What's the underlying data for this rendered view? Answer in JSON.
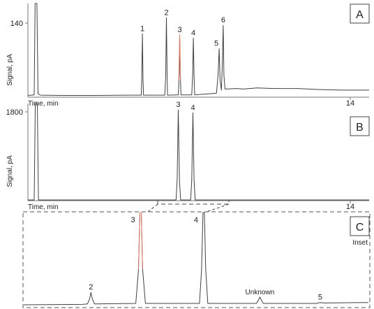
{
  "chart_data": [
    {
      "id": "A",
      "type": "line",
      "panel_label": "A",
      "ylabel": "Signal, pA",
      "xlabel": "Time, min",
      "y_tick": "140",
      "x_tick": "14",
      "ylim": [
        0,
        175
      ],
      "xlim": [
        0,
        15.2
      ],
      "series": [
        {
          "points": [
            [
              0,
              2
            ],
            [
              0.28,
              3
            ],
            [
              0.32,
              175
            ],
            [
              0.36,
              175
            ],
            [
              0.4,
              175
            ],
            [
              0.45,
              5
            ],
            [
              0.55,
              2.5
            ],
            [
              1.5,
              2
            ],
            [
              3,
              2
            ],
            [
              4.5,
              2.5
            ],
            [
              5.0,
              2.5
            ],
            [
              5.05,
              2.5
            ],
            [
              5.07,
              30
            ],
            [
              5.1,
              118
            ],
            [
              5.13,
              30
            ],
            [
              5.15,
              2.5
            ],
            [
              6.1,
              2.5
            ],
            [
              6.14,
              40
            ],
            [
              6.17,
              148
            ],
            [
              6.2,
              40
            ],
            [
              6.22,
              2.5
            ],
            [
              6.7,
              3
            ],
            [
              6.74,
              40
            ],
            [
              6.76,
              116
            ],
            [
              6.79,
              40
            ],
            [
              6.82,
              3
            ],
            [
              7.3,
              3
            ],
            [
              7.34,
              40
            ],
            [
              7.37,
              110
            ],
            [
              7.4,
              40
            ],
            [
              7.43,
              3
            ],
            [
              8.4,
              6
            ],
            [
              8.47,
              40
            ],
            [
              8.52,
              90
            ],
            [
              8.56,
              30
            ],
            [
              8.62,
              12
            ],
            [
              8.66,
              60
            ],
            [
              8.7,
              134
            ],
            [
              8.73,
              40
            ],
            [
              8.78,
              14
            ],
            [
              9.3,
              15
            ],
            [
              9.6,
              14
            ],
            [
              10.2,
              16
            ],
            [
              11,
              15
            ],
            [
              12,
              15
            ],
            [
              13,
              13
            ],
            [
              14,
              12
            ],
            [
              15.2,
              12
            ]
          ],
          "red_segment": [
            [
              6.72,
              30
            ],
            [
              6.76,
              116
            ],
            [
              6.8,
              30
            ]
          ]
        }
      ],
      "peak_labels": [
        {
          "text": "1",
          "x": 5.1,
          "y": 118
        },
        {
          "text": "2",
          "x": 6.17,
          "y": 148
        },
        {
          "text": "3",
          "x": 6.76,
          "y": 116
        },
        {
          "text": "4",
          "x": 7.37,
          "y": 110
        },
        {
          "text": "5",
          "x": 8.52,
          "y": 90
        },
        {
          "text": "6",
          "x": 8.7,
          "y": 134
        }
      ]
    },
    {
      "id": "B",
      "type": "line",
      "panel_label": "B",
      "ylabel": "Signal, pA",
      "xlabel": "Time, min",
      "y_tick": "1800",
      "x_tick": "14",
      "ylim": [
        0,
        1950
      ],
      "xlim": [
        0,
        15.2
      ],
      "series": [
        {
          "points": [
            [
              0,
              0
            ],
            [
              0.28,
              0
            ],
            [
              0.33,
              1950
            ],
            [
              0.42,
              1950
            ],
            [
              0.47,
              0
            ],
            [
              6.6,
              0
            ],
            [
              6.65,
              400
            ],
            [
              6.7,
              1820
            ],
            [
              6.75,
              400
            ],
            [
              6.8,
              0
            ],
            [
              7.25,
              0
            ],
            [
              7.3,
              400
            ],
            [
              7.35,
              1760
            ],
            [
              7.4,
              400
            ],
            [
              7.45,
              0
            ],
            [
              15.2,
              0
            ]
          ],
          "red_segment": []
        }
      ],
      "peak_labels": [
        {
          "text": "3",
          "x": 6.7,
          "y": 1820
        },
        {
          "text": "4",
          "x": 7.35,
          "y": 1760
        }
      ]
    },
    {
      "id": "C",
      "type": "line",
      "panel_label": "C",
      "inset_label": "Inset",
      "ylim": [
        0,
        100
      ],
      "xlim": [
        0,
        100
      ],
      "series": [
        {
          "points": [
            [
              0,
              1.5
            ],
            [
              17,
              2
            ],
            [
              18.5,
              2.5
            ],
            [
              19.1,
              8
            ],
            [
              19.5,
              15
            ],
            [
              19.9,
              8
            ],
            [
              20.5,
              2.5
            ],
            [
              32.5,
              3
            ],
            [
              33.3,
              40
            ],
            [
              33.7,
              150
            ],
            [
              34.1,
              150
            ],
            [
              34.5,
              40
            ],
            [
              35.3,
              3
            ],
            [
              51,
              3
            ],
            [
              51.6,
              40
            ],
            [
              52,
              150
            ],
            [
              52.4,
              150
            ],
            [
              52.8,
              40
            ],
            [
              53.4,
              3
            ],
            [
              67.5,
              3
            ],
            [
              68,
              6
            ],
            [
              68.5,
              10
            ],
            [
              69,
              6
            ],
            [
              69.5,
              3
            ],
            [
              85,
              3
            ],
            [
              86,
              4
            ],
            [
              87,
              3.5
            ],
            [
              100,
              4
            ]
          ],
          "red_segment": [
            [
              33.3,
              40
            ],
            [
              33.7,
              150
            ],
            [
              34.1,
              150
            ],
            [
              34.5,
              40
            ]
          ]
        }
      ],
      "peak_labels": [
        {
          "text": "2",
          "x": 19.5,
          "y": 15
        },
        {
          "text": "3",
          "x": 33.7,
          "y": 100
        },
        {
          "text": "4",
          "x": 52,
          "y": 100
        },
        {
          "text": "Unknown",
          "x": 68.5,
          "y": 10
        },
        {
          "text": "5",
          "x": 86,
          "y": 4
        }
      ]
    }
  ],
  "colors": {
    "trace": "#404040",
    "highlight": "#e07a68",
    "axis": "#777777",
    "frame": "#444444"
  }
}
